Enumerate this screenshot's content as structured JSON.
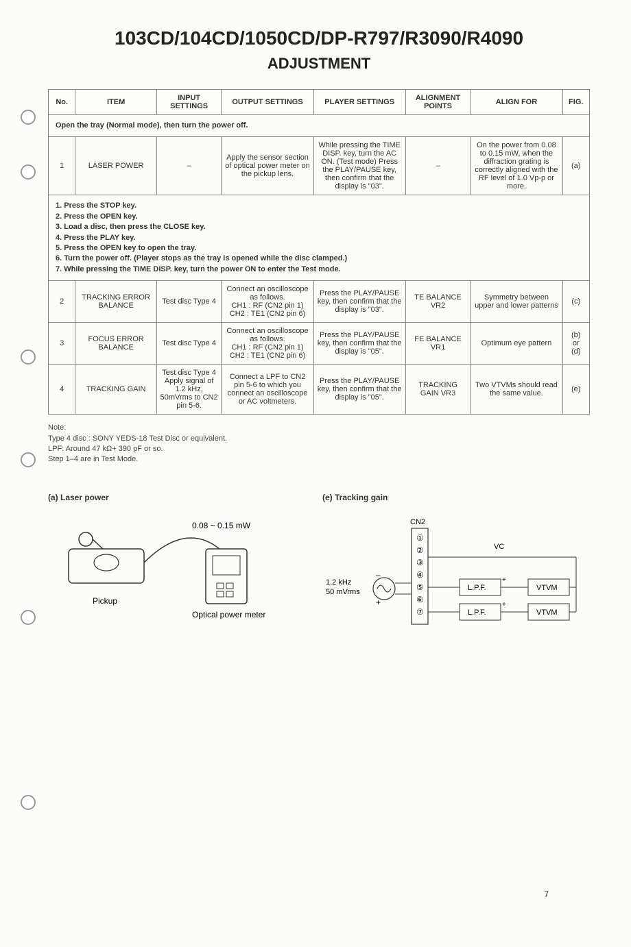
{
  "title_main": "103CD/104CD/1050CD/DP-R797/R3090/R4090",
  "title_sub": "ADJUSTMENT",
  "headers": {
    "no": "No.",
    "item": "ITEM",
    "input": "INPUT SETTINGS",
    "output": "OUTPUT SETTINGS",
    "player": "PLAYER SETTINGS",
    "points": "ALIGNMENT POINTS",
    "for": "ALIGN FOR",
    "fig": "FIG."
  },
  "instr1": "Open the tray (Normal mode), then turn the power off.",
  "rows": [
    {
      "no": "1",
      "item": "LASER POWER",
      "input": "–",
      "output": "Apply the sensor section of optical power meter on the pickup lens.",
      "player": "While pressing the TIME DISP. key, turn the AC ON. (Test mode) Press the PLAY/PAUSE key, then confirm that the display is \"03\".",
      "points": "–",
      "for": "On the power from 0.08 to 0.15 mW, when the diffraction grating is correctly aligned with the RF level of 1.0 Vp-p or more.",
      "fig": "(a)"
    },
    {
      "no": "2",
      "item": "TRACKING ERROR BALANCE",
      "input": "Test disc Type 4",
      "output": "Connect an oscilloscope as follows.\nCH1 : RF (CN2 pin 1)\nCH2 : TE1 (CN2 pin 6)",
      "player": "Press the PLAY/PAUSE key, then confirm that the display is \"03\".",
      "points": "TE BALANCE VR2",
      "for": "Symmetry between upper and lower patterns",
      "fig": "(c)"
    },
    {
      "no": "3",
      "item": "FOCUS ERROR BALANCE",
      "input": "Test disc Type 4",
      "output": "Connect an oscilloscope as follows.\nCH1 : RF (CN2 pin 1)\nCH2 : TE1 (CN2 pin 6)",
      "player": "Press the PLAY/PAUSE key, then confirm that the display is \"05\".",
      "points": "FE BALANCE VR1",
      "for": "Optimum eye pattern",
      "fig": "(b)\nor\n(d)"
    },
    {
      "no": "4",
      "item": "TRACKING GAIN",
      "input": "Test disc Type 4\nApply signal of 1.2 kHz, 50mVrms to CN2 pin 5-6.",
      "output": "Connect a LPF to CN2 pin 5-6 to which you connect an oscilloscope or AC voltmeters.",
      "player": "Press the PLAY/PAUSE key, then confirm that the display is \"05\".",
      "points": "TRACKING GAIN VR3",
      "for": "Two VTVMs should read the same value.",
      "fig": "(e)"
    }
  ],
  "instr2": [
    "1. Press the STOP key.",
    "2. Press the OPEN key.",
    "3. Load a disc, then press the CLOSE key.",
    "4. Press the PLAY key.",
    "5. Press the OPEN key to open the tray.",
    "6. Turn the power off. (Player stops as the tray is opened while the disc clamped.)",
    "7. While pressing the TIME DISP. key, turn the power ON to enter the Test mode."
  ],
  "notes": {
    "head": "Note:",
    "l1": "Type 4 disc : SONY YEDS-18 Test Disc or equivalent.",
    "l2": "LPF: Around 47 kΩ+ 390 pF or so.",
    "l3": "Step 1–4 are in Test Mode."
  },
  "figA": {
    "title": "(a) Laser power",
    "power_range": "0.08 ~ 0.15 mW",
    "pickup": "Pickup",
    "meter": "Optical power meter"
  },
  "figE": {
    "title": "(e) Tracking gain",
    "cn2": "CN2",
    "vc": "VC",
    "sig": "1.2 kHz\n50 mVrms",
    "lpf": "L.P.F.",
    "vtvm": "VTVM"
  },
  "page": "7",
  "styles": {
    "border_color": "#888888",
    "text_color": "#333333",
    "bg": "#fcfcfa",
    "header_fontsize": 11,
    "body_fontsize": 11
  },
  "circled": [
    "①",
    "②",
    "③",
    "④",
    "⑤",
    "⑥",
    "⑦"
  ]
}
